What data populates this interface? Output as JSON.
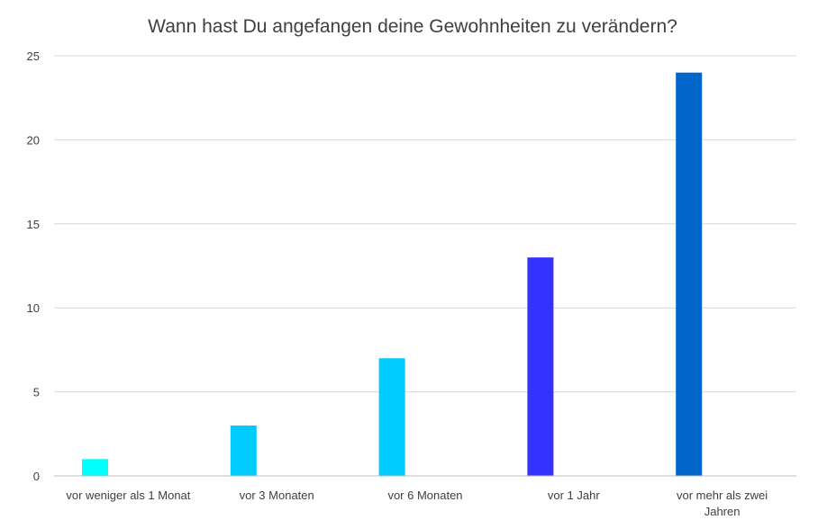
{
  "chart_data": {
    "type": "bar",
    "title": "Wann hast Du angefangen deine Gewohnheiten zu verändern?",
    "categories": [
      "vor weniger als 1 Monat",
      "vor 3 Monaten",
      "vor 6 Monaten",
      "vor 1 Jahr",
      "vor mehr als zwei Jahren"
    ],
    "category_lines": [
      [
        "vor weniger als 1 Monat"
      ],
      [
        "vor 3 Monaten"
      ],
      [
        "vor 6 Monaten"
      ],
      [
        "vor 1 Jahr"
      ],
      [
        "vor mehr als zwei",
        "Jahren"
      ]
    ],
    "values": [
      1,
      3,
      7,
      13,
      24
    ],
    "colors": [
      "#00ffff",
      "#00ccff",
      "#00ccff",
      "#3333ff",
      "#0066cc"
    ],
    "ylim": [
      0,
      25
    ],
    "yticks": [
      0,
      5,
      10,
      15,
      20,
      25
    ],
    "grid": true,
    "legend": "none"
  }
}
